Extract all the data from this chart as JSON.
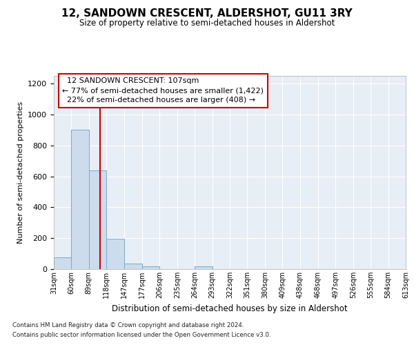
{
  "title": "12, SANDOWN CRESCENT, ALDERSHOT, GU11 3RY",
  "subtitle": "Size of property relative to semi-detached houses in Aldershot",
  "xlabel": "Distribution of semi-detached houses by size in Aldershot",
  "ylabel": "Number of semi-detached properties",
  "property_label": "12 SANDOWN CRESCENT: 107sqm",
  "pct_smaller": 77,
  "count_smaller": 1422,
  "pct_larger": 22,
  "count_larger": 408,
  "bin_edges": [
    31,
    60,
    89,
    118,
    147,
    177,
    206,
    235,
    264,
    293,
    322,
    351,
    380,
    409,
    438,
    468,
    497,
    526,
    555,
    584,
    613
  ],
  "bar_heights": [
    75,
    900,
    640,
    195,
    35,
    18,
    0,
    0,
    20,
    0,
    0,
    0,
    0,
    0,
    0,
    0,
    0,
    0,
    0,
    0
  ],
  "bar_color": "#ccdcec",
  "bar_edge_color": "#7aaac8",
  "vline_color": "#cc0000",
  "vline_x": 107,
  "ylim": [
    0,
    1250
  ],
  "yticks": [
    0,
    200,
    400,
    600,
    800,
    1000,
    1200
  ],
  "background_color": "#e8eef5",
  "grid_color": "#ffffff",
  "annotation_box_facecolor": "#ffffff",
  "annotation_box_edgecolor": "#cc0000",
  "footer_line1": "Contains HM Land Registry data © Crown copyright and database right 2024.",
  "footer_line2": "Contains public sector information licensed under the Open Government Licence v3.0."
}
